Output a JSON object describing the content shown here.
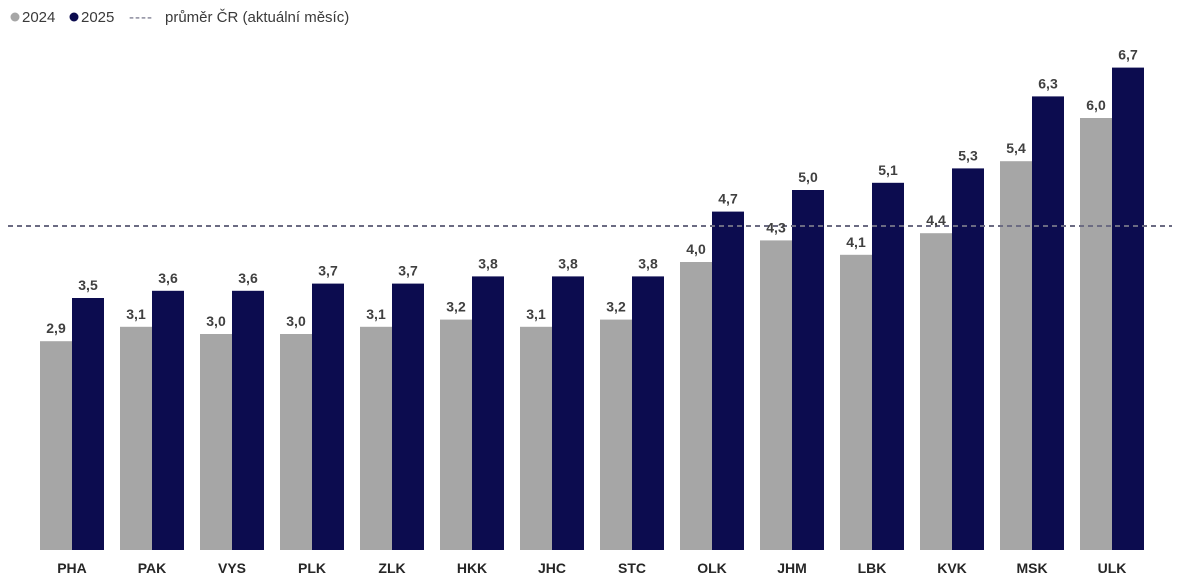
{
  "legend": {
    "series_2024": "2024",
    "series_2025": "2025",
    "dash_symbol": "----",
    "average": "průměr ČR (aktuální měsíc)"
  },
  "colors": {
    "series_2024": "#a6a6a6",
    "series_2025": "#0c0c4f",
    "average_line": "#6b6b82"
  },
  "chart_data": {
    "type": "bar",
    "categories": [
      "PHA",
      "PAK",
      "VYS",
      "PLK",
      "ZLK",
      "HKK",
      "JHC",
      "STC",
      "OLK",
      "JHM",
      "LBK",
      "KVK",
      "MSK",
      "ULK"
    ],
    "series": [
      {
        "name": "2024",
        "values": [
          2.9,
          3.1,
          3.0,
          3.0,
          3.1,
          3.2,
          3.1,
          3.2,
          4.0,
          4.3,
          4.1,
          4.4,
          5.4,
          6.0
        ],
        "labels": [
          "2,9",
          "3,1",
          "3,0",
          "3,0",
          "3,1",
          "3,2",
          "3,1",
          "3,2",
          "4,0",
          "4,3",
          "4,1",
          "4,4",
          "5,4",
          "6,0"
        ]
      },
      {
        "name": "2025",
        "values": [
          3.5,
          3.6,
          3.6,
          3.7,
          3.7,
          3.8,
          3.8,
          3.8,
          4.7,
          5.0,
          5.1,
          5.3,
          6.3,
          6.7
        ],
        "labels": [
          "3,5",
          "3,6",
          "3,6",
          "3,7",
          "3,7",
          "3,8",
          "3,8",
          "3,8",
          "4,7",
          "5,0",
          "5,1",
          "5,3",
          "6,3",
          "6,7"
        ]
      }
    ],
    "reference_line": {
      "name": "průměr ČR (aktuální měsíc)",
      "value": 4.5,
      "style": "dashed"
    },
    "title": "",
    "xlabel": "",
    "ylabel": "",
    "ylim": [
      0,
      7.5
    ],
    "grid": false,
    "legend_position": "top-left"
  }
}
